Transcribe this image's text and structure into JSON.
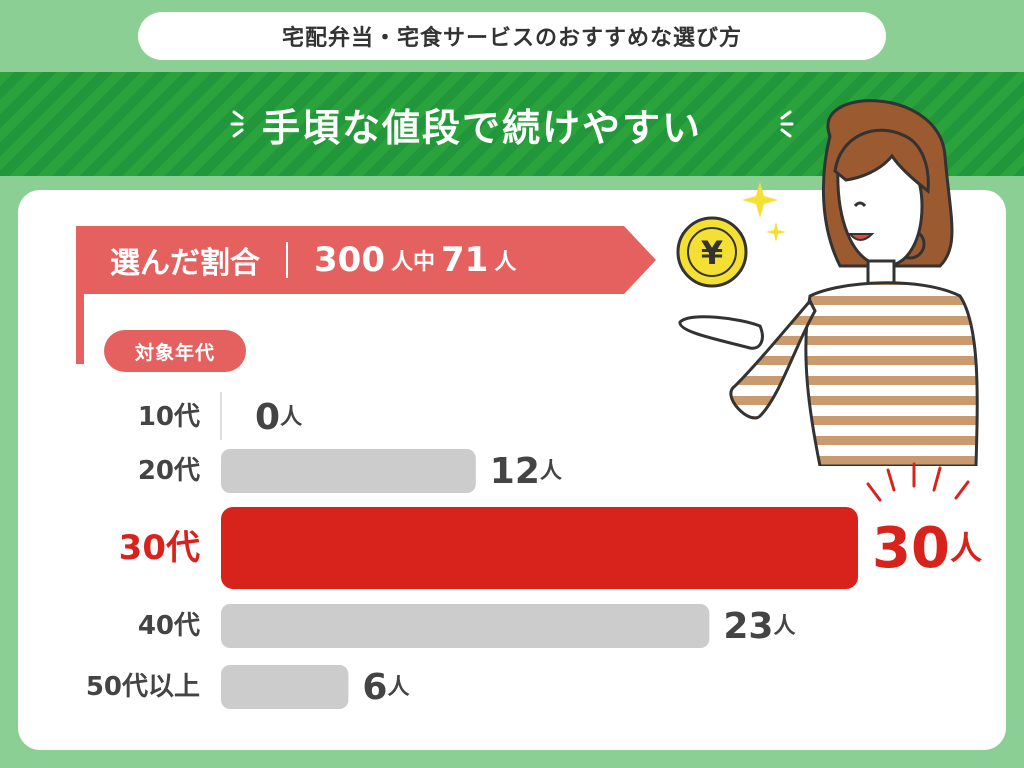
{
  "header": {
    "title": "宅配弁当・宅食サービスのおすすめな選び方"
  },
  "banner": {
    "text": "手頃な値段で続けやすい"
  },
  "summary": {
    "label": "選んだ割合",
    "total": "300",
    "total_unit": "人中",
    "selected": "71",
    "selected_unit": "人"
  },
  "age_chip": "対象年代",
  "colors": {
    "highlight": "#d8231d",
    "bar": "#cccccc",
    "label": "#444444",
    "accent": "#e5615f",
    "green": "#2aa33c"
  },
  "chart_data": {
    "type": "bar",
    "orientation": "horizontal",
    "categories": [
      "10代",
      "20代",
      "30代",
      "40代",
      "50代以上"
    ],
    "values": [
      0,
      12,
      30,
      23,
      6
    ],
    "value_unit": "人",
    "highlight_index": 2,
    "xlim": [
      0,
      30
    ],
    "grid": false
  }
}
